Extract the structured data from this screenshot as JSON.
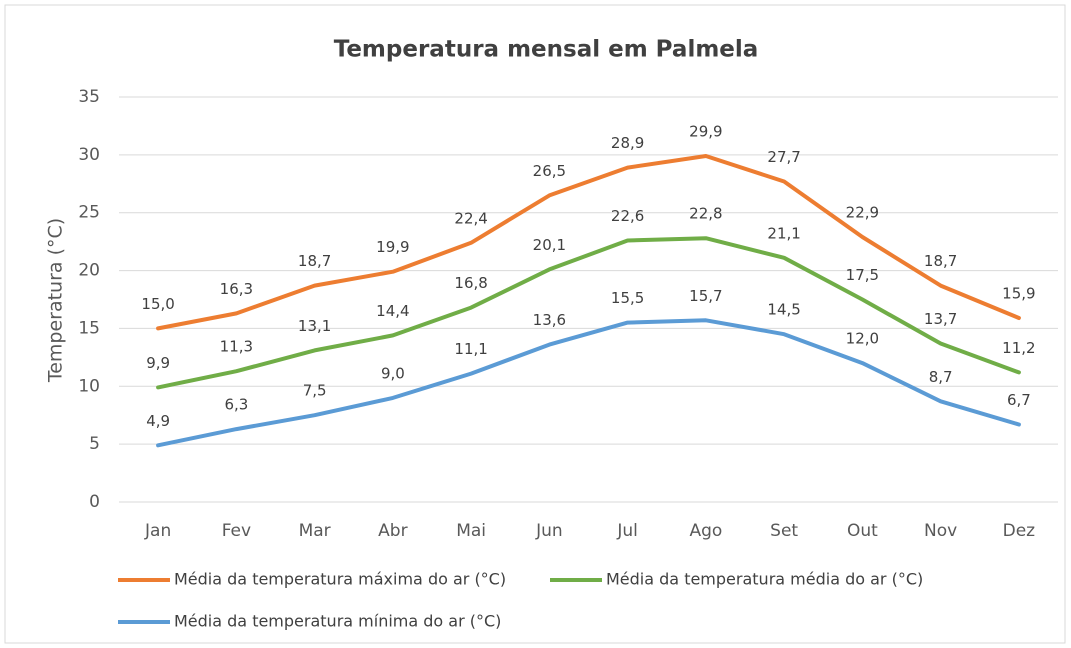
{
  "chart_data": {
    "type": "line",
    "title": "Temperatura mensal em Palmela",
    "y_label": "Temperatura (°C)",
    "categories": [
      "Jan",
      "Fev",
      "Mar",
      "Abr",
      "Mai",
      "Jun",
      "Jul",
      "Ago",
      "Set",
      "Out",
      "Nov",
      "Dez"
    ],
    "series": [
      {
        "name": "Média da temperatura máxima do ar (°C)",
        "color": "#ed7d31",
        "values": [
          15.0,
          16.3,
          18.7,
          19.9,
          22.4,
          26.5,
          28.9,
          29.9,
          27.7,
          22.9,
          18.7,
          15.9
        ],
        "value_labels": [
          "15,0",
          "16,3",
          "18,7",
          "19,9",
          "22,4",
          "26,5",
          "28,9",
          "29,9",
          "27,7",
          "22,9",
          "18,7",
          "15,9"
        ]
      },
      {
        "name": "Média da temperatura média do ar (°C)",
        "color": "#70ad47",
        "values": [
          9.9,
          11.3,
          13.1,
          14.4,
          16.8,
          20.1,
          22.6,
          22.8,
          21.1,
          17.5,
          13.7,
          11.2
        ],
        "value_labels": [
          "9,9",
          "11,3",
          "13,1",
          "14,4",
          "16,8",
          "20,1",
          "22,6",
          "22,8",
          "21,1",
          "17,5",
          "13,7",
          "11,2"
        ]
      },
      {
        "name": "Média da temperatura mínima do ar (°C)",
        "color": "#5b9bd5",
        "values": [
          4.9,
          6.3,
          7.5,
          9.0,
          11.1,
          13.6,
          15.5,
          15.7,
          14.5,
          12.0,
          8.7,
          6.7
        ],
        "value_labels": [
          "4,9",
          "6,3",
          "7,5",
          "9,0",
          "11,1",
          "13,6",
          "15,5",
          "15,7",
          "14,5",
          "12,0",
          "8,7",
          "6,7"
        ]
      }
    ],
    "ylim": [
      0,
      35
    ],
    "yticks": [
      0,
      5,
      10,
      15,
      20,
      25,
      30,
      35
    ],
    "grid": true
  }
}
